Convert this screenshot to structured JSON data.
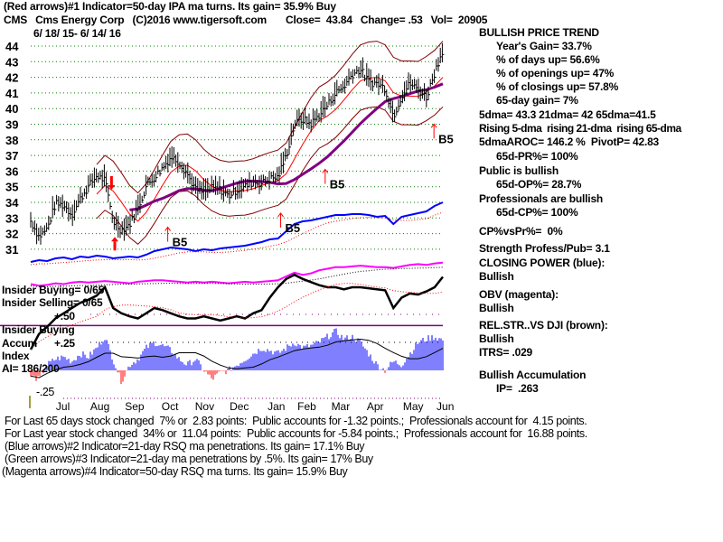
{
  "header": {
    "indicator1": "(Red arrows)#1 Indicator=50-day IPA ma turns. Its gain= 35.9% Buy",
    "symbol": "CMS",
    "company": "Cms Energy Corp",
    "copyright": "(C)2016 www.tigersoft.com",
    "close": "Close=  43.84",
    "change": "Change= .53",
    "vol": "Vol=  20905",
    "date_range": "6/ 18/ 15- 6/ 14/ 16"
  },
  "right_panel": {
    "trend_title": "BULLISH PRICE TREND",
    "years_gain": "Year's Gain= 33.7%",
    "days_up": "% of days up= 56.6%",
    "openings_up": "% of openings up= 47%",
    "closings_up": "% of closings up= 57.8%",
    "gain_65d": "65-day gain= 7%",
    "dma": "5dma= 43.3 21dma= 42 65dma=41.5",
    "rising": "Rising 5-dma  rising 21-dma  rising 65-dma",
    "aroc": "5dmaAROC= 146.2 %  PivotP= 42.83",
    "pr65": "65d-PR%= 100%",
    "public": "Public is bullish",
    "op65": "65d-OP%= 28.7%",
    "professionals": "Professionals are bullish",
    "cp65": "65d-CP%= 100%",
    "cp_vs_pr": "CP%vsPr%=  0%",
    "strength": "Strength Profess/Pub= 3.1",
    "closing_power": "CLOSING POWER (blue):",
    "closing_power_status": "Bullish",
    "obv": "OBV (magenta):",
    "obv_status": "Bullish",
    "relstr": "REL.STR..VS DJI (brown):",
    "relstr_status": "Bullish",
    "itrs": "ITRS= .029",
    "accumulation": "Bullish Accumulation",
    "ip": "IP=  .263"
  },
  "left_labels": {
    "insider_buying": "Insider Buying= 0/65",
    "insider_selling": "Insider Selling= 0/65",
    "plus50": "+.50",
    "insider_buying_line": "Insider Buying",
    "accum": "Accum",
    "plus25": "+.25",
    "index": "Index",
    "ai": "AI= 186/200",
    "minus25": "-.25"
  },
  "footer": {
    "line1": "For Last 65 days stock changed  7% or  2.83 points:  Public accounts for -1.32 points.;  Professionals account for  4.15 points.",
    "line2": "For Last year stock changed  34% or  11.04 points:  Public accounts for -5.84 points.;  Professionals account for  16.88 points.",
    "line3": "(Blue arrows)#2 Indicator=21-day RSQ ma penetrations. Its gain= 17.1% Buy",
    "line4": "(Green arrows)#3 Indicator=21-day ma penetrations by .5%. Its gain= 17% Buy",
    "line5": "(Magenta arrows)#4 Indicator=50-day RSQ ma turns. Its gain= 15.9% Buy"
  },
  "chart_data": {
    "type": "line",
    "title": "CMS Cms Energy Corp",
    "x_unit": "week index (6/18/15 - 6/14/16)",
    "month_labels": [
      "Jul",
      "Aug",
      "Sep",
      "Oct",
      "Nov",
      "Dec",
      "Jan",
      "Feb",
      "Mar",
      "Apr",
      "May",
      "Jun"
    ],
    "month_week_index": [
      3.9,
      8.4,
      12.6,
      16.9,
      21.1,
      25.3,
      29.8,
      33.5,
      37.6,
      41.8,
      46.4,
      50.3
    ],
    "y_ticks": [
      44,
      43,
      42,
      41,
      40,
      39,
      38,
      37,
      36,
      35,
      34,
      33,
      32,
      31
    ],
    "ylim": [
      31,
      44
    ],
    "grid": true,
    "price_closes": [
      32.8,
      31.8,
      32.3,
      33.9,
      33.8,
      33.2,
      34.2,
      35.0,
      35.7,
      35.4,
      32.8,
      32.2,
      32.6,
      33.6,
      35.0,
      35.6,
      36.2,
      36.9,
      36.6,
      35.8,
      34.8,
      34.6,
      34.9,
      34.8,
      34.4,
      34.8,
      35.0,
      35.3,
      35.2,
      35.5,
      35.6,
      37.0,
      39.0,
      39.3,
      39.0,
      39.6,
      40.2,
      41.0,
      41.4,
      42.2,
      42.5,
      41.7,
      41.6,
      41.3,
      39.5,
      40.8,
      41.6,
      41.2,
      40.7,
      42.3,
      43.8
    ],
    "closing_power_blue": [
      10,
      12,
      11,
      14,
      15,
      13,
      16,
      15,
      17,
      16,
      14,
      15,
      16,
      15,
      18,
      22,
      24,
      26,
      25,
      24,
      22,
      24,
      23,
      25,
      26,
      27,
      28,
      30,
      32,
      35,
      36,
      44,
      52,
      55,
      56,
      58,
      60,
      62,
      62,
      63,
      63,
      62,
      60,
      61,
      52,
      60,
      62,
      64,
      66,
      72,
      76
    ],
    "obv_magenta": [
      30,
      28,
      29,
      31,
      30,
      32,
      33,
      32,
      33,
      34,
      33,
      32,
      31,
      33,
      34,
      35,
      35,
      34,
      33,
      32,
      33,
      32,
      33,
      32,
      31,
      32,
      33,
      32,
      33,
      34,
      35,
      40,
      45,
      42,
      44,
      48,
      50,
      52,
      52,
      53,
      54,
      53,
      52,
      52,
      51,
      53,
      55,
      56,
      55,
      57,
      58
    ],
    "relstr_black": [
      20,
      35,
      42,
      50,
      55,
      60,
      65,
      68,
      72,
      80,
      60,
      55,
      52,
      50,
      55,
      60,
      58,
      55,
      52,
      50,
      50,
      52,
      50,
      48,
      50,
      52,
      50,
      55,
      58,
      70,
      80,
      88,
      92,
      88,
      85,
      82,
      80,
      80,
      78,
      80,
      80,
      79,
      78,
      77,
      60,
      70,
      74,
      73,
      76,
      80,
      90
    ],
    "accum_index": [
      -0.05,
      -0.08,
      0.05,
      0.1,
      0.12,
      0.08,
      0.15,
      0.12,
      0.2,
      0.3,
      0.1,
      -0.1,
      0.05,
      0.1,
      0.2,
      0.25,
      0.22,
      0.18,
      0.1,
      0.05,
      0.1,
      0.0,
      -0.08,
      -0.02,
      0.0,
      0.05,
      0.1,
      0.15,
      0.2,
      0.18,
      0.15,
      0.2,
      0.25,
      0.2,
      0.22,
      0.25,
      0.3,
      0.35,
      0.28,
      0.3,
      0.25,
      0.15,
      0.05,
      0.0,
      0.08,
      0.05,
      0.15,
      0.25,
      0.28,
      0.3,
      0.27
    ],
    "insider_buying_level": 0.4,
    "annotations": [
      {
        "label": "B5",
        "week": 17.5,
        "price": 31.6
      },
      {
        "label": "B5",
        "week": 31.2,
        "price": 32.5
      },
      {
        "label": "B5",
        "week": 36.6,
        "price": 35.3
      },
      {
        "label": "B5",
        "week": 49.8,
        "price": 38.2
      }
    ],
    "red_arrows": [
      {
        "dir": "down",
        "week": 9.8,
        "price": 35.1
      },
      {
        "dir": "up",
        "week": 10.2,
        "price": 31.5
      }
    ]
  }
}
